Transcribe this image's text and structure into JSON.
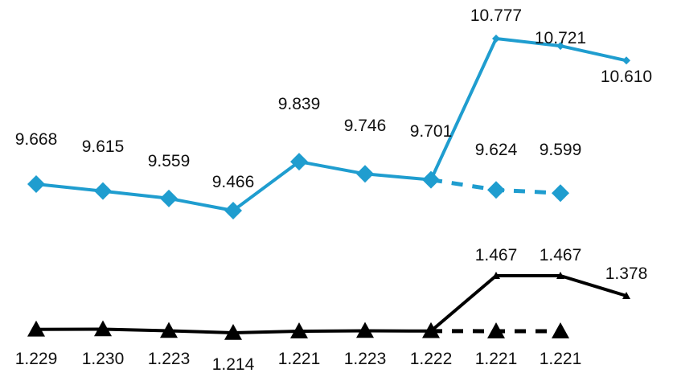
{
  "chart_data": {
    "type": "line",
    "title": "",
    "xlabel": "",
    "ylabel": "",
    "grid": false,
    "legend": "none",
    "categories": [
      "",
      "",
      "",
      "",
      "",
      "",
      "",
      "",
      "",
      "",
      ""
    ],
    "series": [
      {
        "color": "#1f9dcf",
        "marker": "diamond",
        "segments": [
          {
            "style": "solid",
            "values": [
              9.668,
              9.615,
              9.559,
              9.466,
              9.839,
              9.746,
              9.701,
              null,
              null,
              null,
              null
            ]
          },
          {
            "style": "dashed",
            "values": [
              null,
              null,
              null,
              null,
              null,
              null,
              9.701,
              9.624,
              9.599,
              null,
              null
            ]
          },
          {
            "style": "solid",
            "values": [
              null,
              null,
              null,
              null,
              null,
              null,
              9.701,
              10.777,
              10.721,
              10.61,
              null
            ]
          }
        ],
        "labels": [
          "9.668",
          "9.615",
          "9.559",
          "9.466",
          "9.839",
          "9.746",
          "9.701",
          "9.624",
          "9.599",
          "10.777",
          "10.721",
          "10.610"
        ]
      },
      {
        "color": "#000000",
        "marker": "triangle",
        "segments": [
          {
            "style": "solid",
            "values": [
              1.229,
              1.23,
              1.223,
              1.214,
              1.221,
              1.223,
              1.222,
              null,
              null,
              null,
              null
            ]
          },
          {
            "style": "dashed",
            "values": [
              null,
              null,
              null,
              null,
              null,
              null,
              1.222,
              1.221,
              1.221,
              null,
              null
            ]
          },
          {
            "style": "solid",
            "values": [
              null,
              null,
              null,
              null,
              null,
              null,
              1.222,
              1.467,
              1.467,
              1.378,
              null
            ]
          }
        ],
        "labels": [
          "1.229",
          "1.230",
          "1.223",
          "1.214",
          "1.221",
          "1.223",
          "1.222",
          "1.221",
          "1.221",
          "1.467",
          "1.467",
          "1.378"
        ]
      }
    ]
  }
}
